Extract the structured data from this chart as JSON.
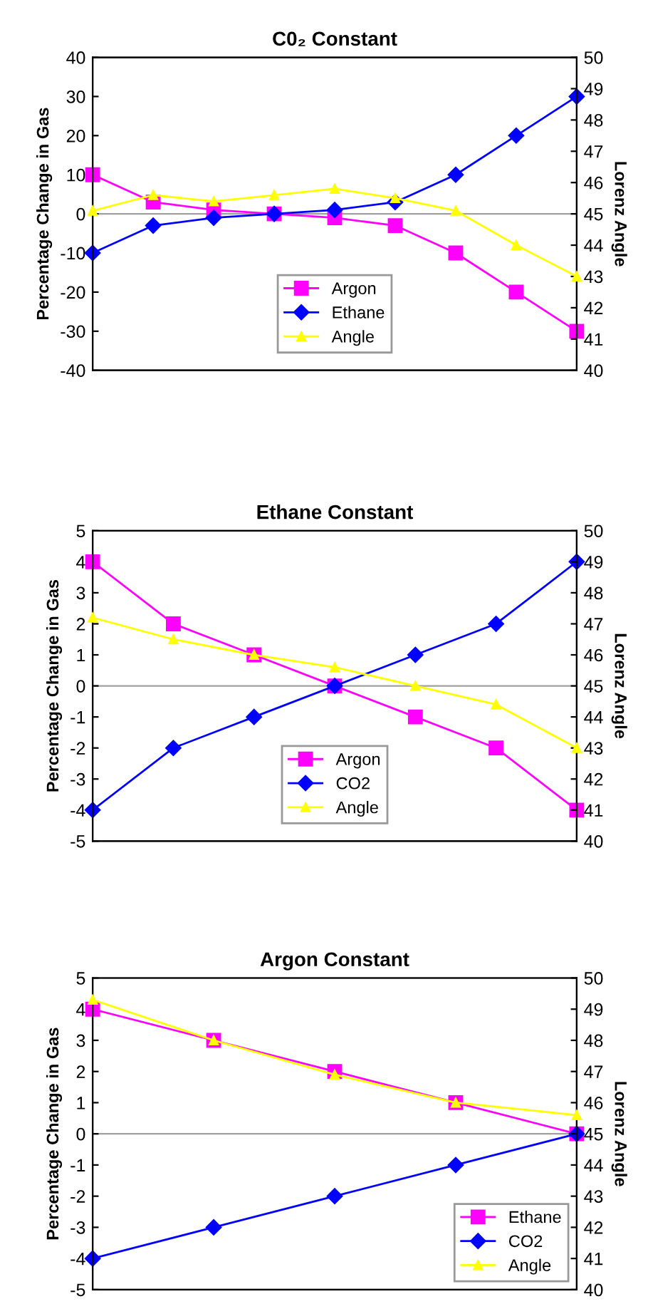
{
  "chart_data": [
    {
      "type": "line",
      "title": "C0₂ Constant",
      "ylabel": "Percentage Change in Gas",
      "y2label": "Lorenz Angle",
      "categories": [
        null,
        null,
        null,
        null,
        null,
        null,
        null,
        null,
        null
      ],
      "series": [
        {
          "name": "Argon",
          "color": "#ff00ff",
          "marker": "square",
          "values": [
            10,
            3,
            1,
            0,
            -1,
            -3,
            -10,
            -20,
            -30
          ]
        },
        {
          "name": "Ethane",
          "color": "#0000ff",
          "marker": "diamond",
          "values": [
            -10,
            -3,
            -1,
            0,
            1,
            3,
            10,
            20,
            30
          ]
        },
        {
          "name": "Angle",
          "color": "#ffff00",
          "marker": "triangle",
          "axis": "y2",
          "values": [
            45.1,
            45.6,
            45.4,
            45.6,
            45.8,
            45.5,
            45.1,
            44.0,
            43.0
          ]
        }
      ],
      "ylim": [
        -40,
        40
      ],
      "yticks": [
        -40,
        -30,
        -20,
        -10,
        0,
        10,
        20,
        30,
        40
      ],
      "y2lim": [
        40,
        50
      ],
      "y2ticks": [
        40,
        41,
        42,
        43,
        44,
        45,
        46,
        47,
        48,
        49,
        50
      ],
      "ref_lines": [
        {
          "axis": "y",
          "value": 0,
          "color": "#a0a0a0"
        }
      ],
      "legend": "bottom",
      "grid": false
    },
    {
      "type": "line",
      "title": "Ethane Constant",
      "ylabel": "Percentage Change in Gas",
      "y2label": "Lorenz Angle",
      "categories": [
        null,
        null,
        null,
        null,
        null,
        null,
        null
      ],
      "series": [
        {
          "name": "Argon",
          "color": "#ff00ff",
          "marker": "square",
          "values": [
            4,
            2,
            1,
            0,
            -1,
            -2,
            -4
          ]
        },
        {
          "name": "CO2",
          "color": "#0000ff",
          "marker": "diamond",
          "values": [
            -4,
            -2,
            -1,
            0,
            1,
            2,
            4
          ]
        },
        {
          "name": "Angle",
          "color": "#ffff00",
          "marker": "triangle",
          "axis": "y2",
          "values": [
            47.2,
            46.5,
            46.0,
            45.6,
            45.0,
            44.4,
            43.0
          ]
        }
      ],
      "ylim": [
        -5,
        5
      ],
      "yticks": [
        -5,
        -4,
        -3,
        -2,
        -1,
        0,
        1,
        2,
        3,
        4,
        5
      ],
      "y2lim": [
        40,
        50
      ],
      "y2ticks": [
        40,
        41,
        42,
        43,
        44,
        45,
        46,
        47,
        48,
        49,
        50
      ],
      "ref_lines": [
        {
          "axis": "y",
          "value": 0,
          "color": "#a0a0a0"
        }
      ],
      "legend": "bottom",
      "grid": false
    },
    {
      "type": "line",
      "title": "Argon Constant",
      "ylabel": "Percentage Change in Gas",
      "y2label": "Lorenz Angle",
      "categories": [
        null,
        null,
        null,
        null,
        null
      ],
      "series": [
        {
          "name": "Ethane",
          "color": "#ff00ff",
          "marker": "square",
          "values": [
            4,
            3,
            2,
            1,
            0
          ]
        },
        {
          "name": "CO2",
          "color": "#0000ff",
          "marker": "diamond",
          "values": [
            -4,
            -3,
            -2,
            -1,
            0
          ]
        },
        {
          "name": "Angle",
          "color": "#ffff00",
          "marker": "triangle",
          "axis": "y2",
          "values": [
            49.3,
            48.0,
            46.9,
            46.0,
            45.6
          ]
        }
      ],
      "ylim": [
        -5,
        5
      ],
      "yticks": [
        -5,
        -4,
        -3,
        -2,
        -1,
        0,
        1,
        2,
        3,
        4,
        5
      ],
      "y2lim": [
        40,
        50
      ],
      "y2ticks": [
        40,
        41,
        42,
        43,
        44,
        45,
        46,
        47,
        48,
        49,
        50
      ],
      "ref_lines": [
        {
          "axis": "y",
          "value": 0,
          "color": "#a0a0a0"
        }
      ],
      "legend": "bottom right",
      "grid": false
    }
  ]
}
